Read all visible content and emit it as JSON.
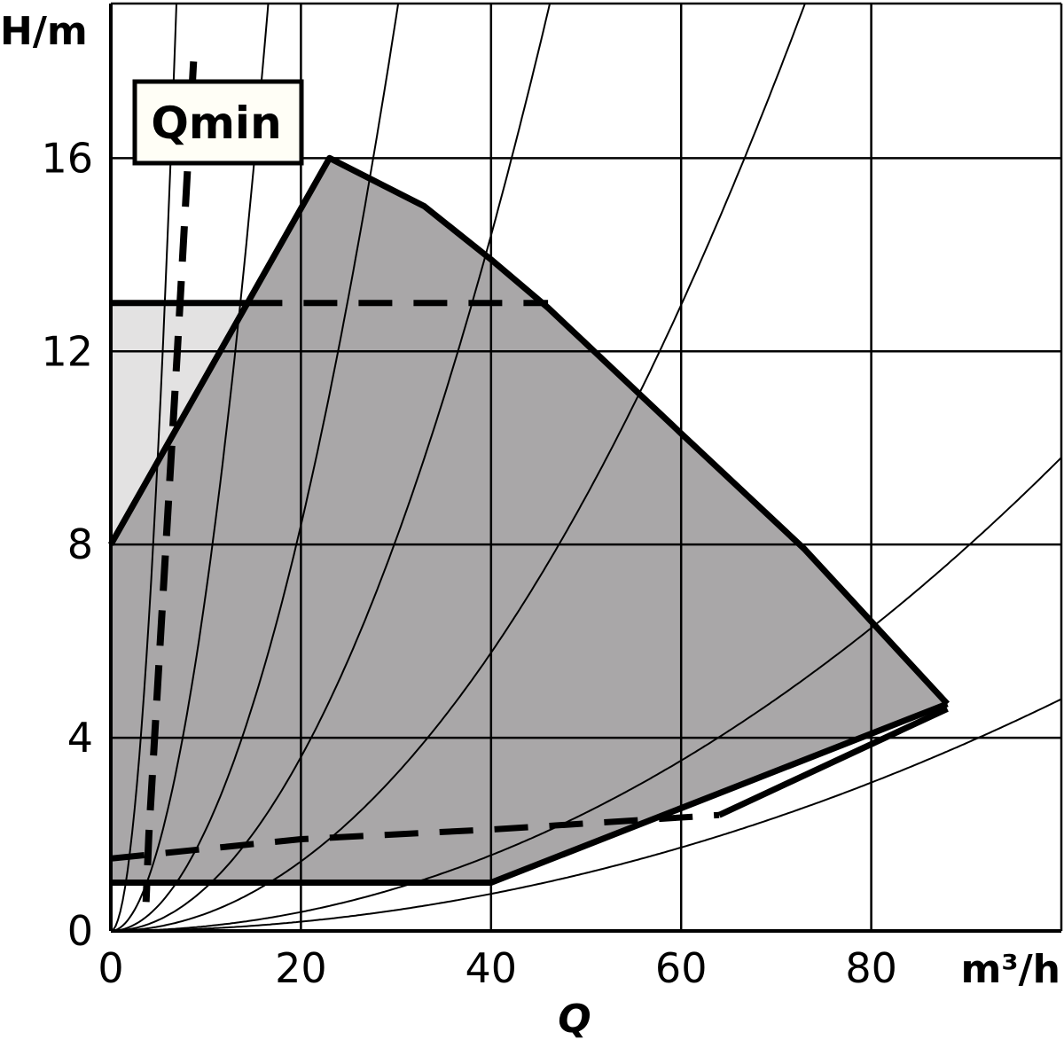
{
  "chart_data": {
    "type": "area",
    "xlabel": "Q",
    "x_unit": "m³/h",
    "ylabel": "H/m",
    "xlim": [
      0,
      100
    ],
    "ylim": [
      0,
      19.2
    ],
    "x_ticks": [
      0,
      20,
      40,
      60,
      80
    ],
    "y_ticks": [
      0,
      4,
      8,
      12,
      16
    ],
    "grid": true,
    "regions": [
      {
        "name": "operating-field",
        "color": "#a9a7a8",
        "points": [
          [
            0,
            8
          ],
          [
            23,
            16
          ],
          [
            33,
            15
          ],
          [
            40,
            13.9
          ],
          [
            46,
            12.9
          ],
          [
            53,
            11.6
          ],
          [
            60,
            10.3
          ],
          [
            73,
            7.9
          ],
          [
            88,
            4.7
          ],
          [
            40,
            1
          ],
          [
            0,
            1
          ]
        ]
      },
      {
        "name": "extension-field",
        "color": "#e3e2e2",
        "points": [
          [
            0,
            13
          ],
          [
            14.5,
            13
          ],
          [
            0,
            8
          ]
        ]
      }
    ],
    "boundary_lines": [
      {
        "name": "max-curve",
        "style": "solid",
        "points": [
          [
            0,
            8
          ],
          [
            23,
            16
          ],
          [
            33,
            15
          ],
          [
            40,
            13.9
          ],
          [
            46,
            12.9
          ],
          [
            53,
            11.6
          ],
          [
            60,
            10.3
          ],
          [
            73,
            7.9
          ],
          [
            88,
            4.7
          ]
        ]
      },
      {
        "name": "min-curve",
        "style": "solid",
        "points": [
          [
            0,
            1
          ],
          [
            40,
            1
          ],
          [
            88,
            4.7
          ]
        ]
      },
      {
        "name": "upper-limit",
        "style": "solid",
        "points": [
          [
            0,
            13
          ],
          [
            14.5,
            13
          ]
        ]
      },
      {
        "name": "upper-limit-dashed",
        "style": "dashed",
        "points": [
          [
            14.5,
            13
          ],
          [
            46,
            13
          ]
        ]
      },
      {
        "name": "lower-dashed",
        "style": "dashed",
        "points": [
          [
            0,
            1.5
          ],
          [
            20,
            1.9
          ],
          [
            40,
            2.1
          ],
          [
            64,
            2.4
          ]
        ]
      },
      {
        "name": "lower-solid-return",
        "style": "solid",
        "points": [
          [
            64,
            2.4
          ],
          [
            88,
            4.6
          ]
        ]
      }
    ],
    "qmin_line": {
      "label": "Qmin",
      "points": [
        [
          8.7,
          18
        ],
        [
          7,
          12
        ],
        [
          5.5,
          7
        ],
        [
          4,
          2
        ],
        [
          3.7,
          0.6
        ]
      ]
    },
    "system_curves": [
      {
        "k": 0.4032
      },
      {
        "k": 0.07
      },
      {
        "k": 0.021
      },
      {
        "k": 0.009
      },
      {
        "k": 0.0036
      },
      {
        "k": 0.00098
      },
      {
        "k": 0.00048
      }
    ]
  }
}
